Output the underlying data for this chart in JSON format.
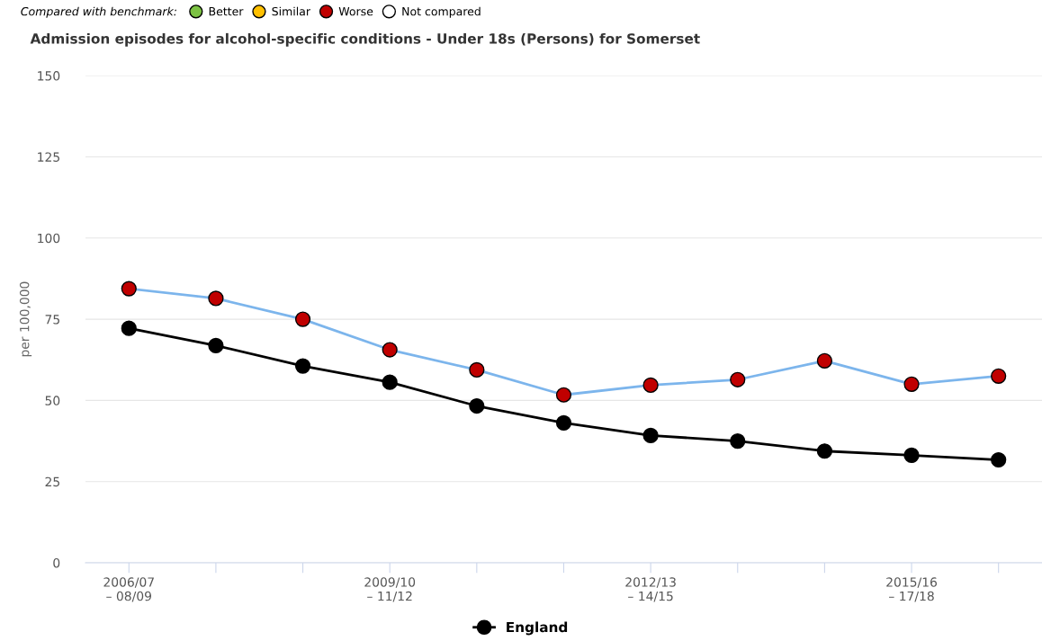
{
  "chart_data": {
    "type": "line",
    "title": "Admission episodes for alcohol-specific conditions - Under 18s (Persons) for Somerset",
    "legend_title": "Compared with benchmark:",
    "ylabel": "per 100,000",
    "categories": [
      "2006/07\n– 08/09",
      null,
      null,
      "2009/10\n– 11/12",
      null,
      null,
      "2012/13\n– 14/15",
      null,
      null,
      "2015/16\n– 17/18",
      null
    ],
    "series": [
      {
        "color": "#7cb5ec",
        "colors": [
          "#c00000",
          "#c00000",
          "#c00000",
          "#c00000",
          "#c00000",
          "#c00000",
          "#c00000",
          "#c00000",
          "#c00000",
          "#c00000",
          "#c00000"
        ],
        "values": [
          84.4,
          81.4,
          75.0,
          65.6,
          59.4,
          51.7,
          54.7,
          56.4,
          62.2,
          55.0,
          57.5
        ]
      },
      {
        "name": "England",
        "color": "#000000",
        "values": [
          72.2,
          66.9,
          60.6,
          55.6,
          48.3,
          43.1,
          39.2,
          37.5,
          34.4,
          33.1,
          31.7
        ]
      },
      {
        "name": "Better",
        "color": "#7cc243",
        "type": "scatter",
        "values": [
          null,
          null,
          null,
          null,
          null,
          null,
          null,
          null,
          null,
          null,
          null
        ]
      },
      {
        "name": "Similar",
        "color": "#ffc000",
        "type": "scatter",
        "values": [
          null,
          null,
          null,
          null,
          null,
          null,
          null,
          null,
          null,
          null,
          null
        ]
      },
      {
        "name": "Worse",
        "color": "#c00000",
        "type": "scatter",
        "values": [
          null,
          null,
          null,
          null,
          null,
          null,
          null,
          null,
          null,
          null,
          null
        ]
      },
      {
        "name": "Not compared",
        "color": "#ffffff",
        "type": "scatter",
        "values": [
          null,
          null,
          null,
          null,
          null,
          null,
          null,
          null,
          null,
          null,
          null
        ]
      }
    ],
    "ylim": [
      0,
      150
    ],
    "yticks": [
      0,
      25,
      50,
      75,
      100,
      125,
      150
    ],
    "grid": "y",
    "legend": "bottom",
    "marker": "circle"
  }
}
